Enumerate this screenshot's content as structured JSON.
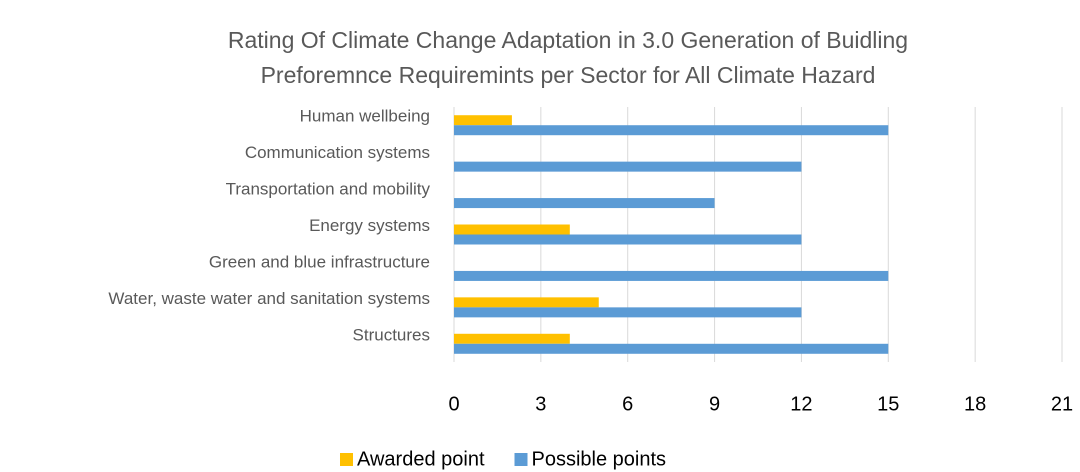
{
  "chart_data": {
    "type": "bar",
    "orientation": "horizontal",
    "title": [
      "Rating Of Climate Change Adaptation in 3.0 Generation of Buidling",
      "Preforemnce Requiremints per Sector for All Climate Hazard"
    ],
    "categories": [
      "Human wellbeing",
      "Communication systems",
      "Transportation and mobility",
      "Energy systems",
      "Green and blue infrastructure",
      "Water, waste water and sanitation systems",
      "Structures"
    ],
    "series": [
      {
        "name": "Awarded point",
        "color": "#FFC000",
        "values": [
          2,
          0,
          0,
          4,
          0,
          5,
          4
        ]
      },
      {
        "name": "Possible points",
        "color": "#5B9BD5",
        "values": [
          15,
          12,
          9,
          12,
          15,
          12,
          15
        ]
      }
    ],
    "xlim": [
      0,
      21
    ],
    "xticks": [
      0,
      3,
      6,
      9,
      12,
      15,
      18,
      21
    ],
    "grid": true,
    "legend": "bottom"
  }
}
